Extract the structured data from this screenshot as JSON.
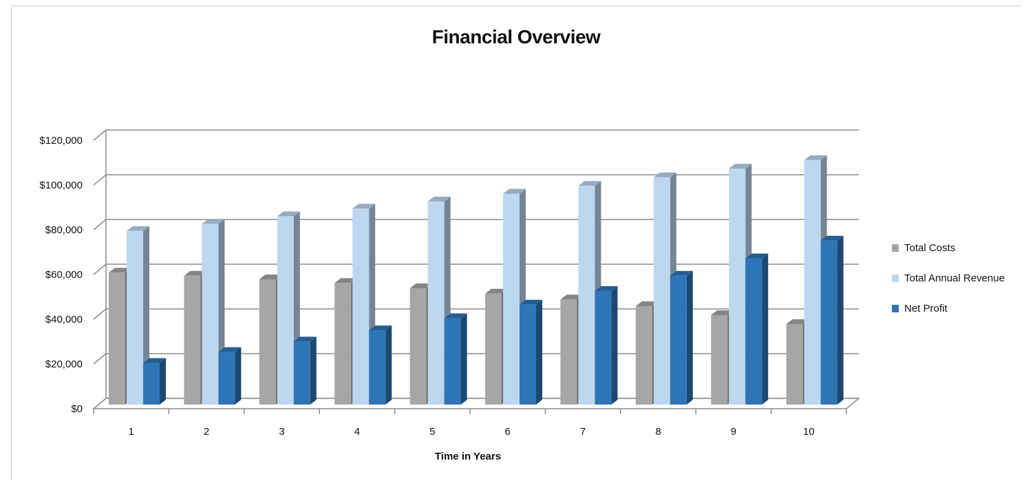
{
  "chart_data": {
    "type": "bar",
    "title": "Financial Overview",
    "xlabel": "Time in Years",
    "ylabel": "",
    "categories": [
      "1",
      "2",
      "3",
      "4",
      "5",
      "6",
      "7",
      "8",
      "9",
      "10"
    ],
    "series": [
      {
        "name": "Total Costs",
        "color": "#a6a6a6",
        "values": [
          59000,
          57600,
          56000,
          54400,
          52000,
          49600,
          47000,
          44000,
          40000,
          36000
        ]
      },
      {
        "name": "Total Annual Revenue",
        "color": "#bdd7ee",
        "values": [
          77600,
          80800,
          84200,
          87600,
          90800,
          94300,
          97800,
          101600,
          105500,
          109300
        ]
      },
      {
        "name": "Net Profit",
        "color": "#2e75b6",
        "values": [
          18600,
          23500,
          28200,
          33200,
          38600,
          44700,
          50800,
          57600,
          65400,
          73300
        ]
      }
    ],
    "yticks": [
      "$0",
      "$20,000",
      "$40,000",
      "$60,000",
      "$80,000",
      "$100,000",
      "$120,000"
    ],
    "ylim": [
      0,
      120000
    ],
    "grid": true,
    "style": "3d-clustered-column",
    "legend_position": "right"
  }
}
